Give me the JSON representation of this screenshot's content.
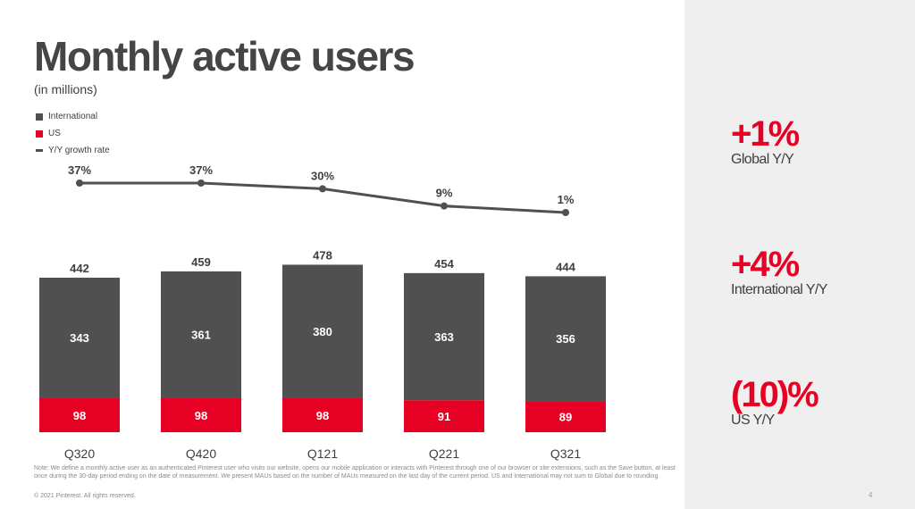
{
  "title": "Monthly active users",
  "subtitle": "(in millions)",
  "colors": {
    "international": "#505050",
    "us": "#e60023",
    "growth_line": "#505050",
    "accent": "#e60023"
  },
  "chart_data": {
    "type": "bar",
    "stacked": true,
    "categories": [
      "Q320",
      "Q420",
      "Q121",
      "Q221",
      "Q321"
    ],
    "series": [
      {
        "name": "International",
        "values": [
          343,
          361,
          380,
          363,
          356
        ]
      },
      {
        "name": "US",
        "values": [
          98,
          98,
          98,
          91,
          89
        ]
      }
    ],
    "totals": [
      442,
      459,
      478,
      454,
      444
    ],
    "line_series": {
      "name": "Y/Y growth rate",
      "values": [
        37,
        37,
        30,
        9,
        1
      ],
      "labels": [
        "37%",
        "37%",
        "30%",
        "9%",
        "1%"
      ]
    },
    "legend": [
      "International",
      "US",
      "Y/Y growth rate"
    ],
    "legend_position": "top-left",
    "ylabel": "(in millions)",
    "grid": false
  },
  "stats": [
    {
      "value": "+1%",
      "label": "Global Y/Y"
    },
    {
      "value": "+4%",
      "label": "International Y/Y"
    },
    {
      "value": "(10)%",
      "label": "US Y/Y"
    }
  ],
  "note": "Note: We define a monthly active user as an authenticated Pinterest user who visits our website, opens our mobile application or interacts with Pinterest through one of our browser or site extensions, such as the Save button, at least once during the 30-day period ending on the date of measurement. We present MAUs based on the number of MAUs measured on the last day of the current period. US and International may not sum to Global due to rounding.",
  "copyright": "© 2021 Pinterest. All rights reserved.",
  "page_number": "4"
}
